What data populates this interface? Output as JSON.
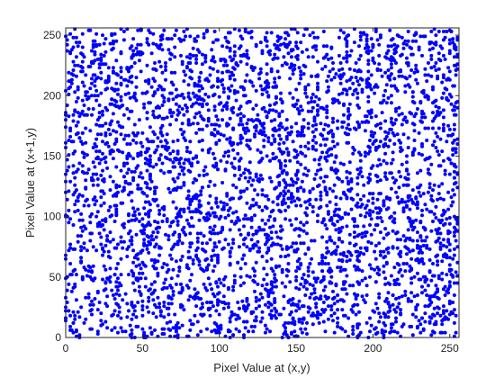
{
  "chart_data": {
    "type": "scatter",
    "title": "",
    "xlabel": "Pixel Value at (x,y)",
    "ylabel": "Pixel Value at (x+1,y)",
    "xlim": [
      0,
      256
    ],
    "ylim": [
      0,
      256
    ],
    "x_ticks": [
      0,
      50,
      100,
      150,
      200,
      250
    ],
    "y_ticks": [
      0,
      50,
      100,
      150,
      200,
      250
    ],
    "grid": false,
    "legend": "none",
    "marker_color": "#0000ff",
    "axis_color": "#262626",
    "series": [
      {
        "distribution": "uniform",
        "x_range": [
          0,
          255
        ],
        "y_range": [
          0,
          255
        ],
        "count": 4096
      }
    ]
  }
}
